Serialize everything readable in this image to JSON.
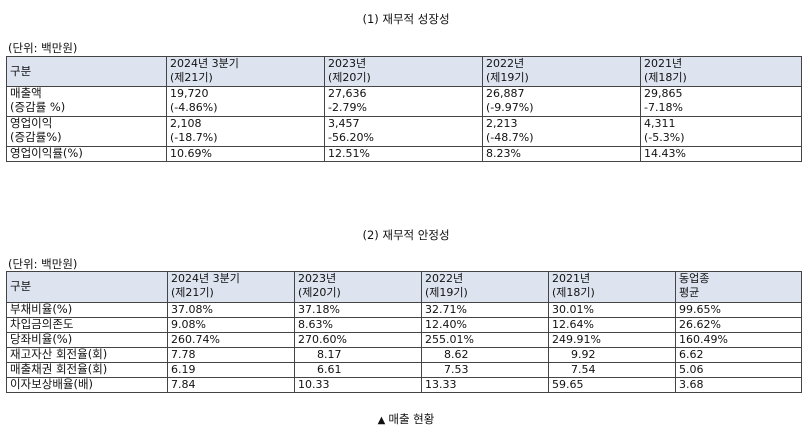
{
  "table1": {
    "title": "(1) 재무적 성장성",
    "unit": "(단위: 백만원)",
    "headers": [
      {
        "l1": "구분",
        "l2": ""
      },
      {
        "l1": "2024년 3분기",
        "l2": "(제21기)"
      },
      {
        "l1": "2023년",
        "l2": "(제20기)"
      },
      {
        "l1": "2022년",
        "l2": "(제19기)"
      },
      {
        "l1": "2021년",
        "l2": "(제18기)"
      }
    ],
    "rows": [
      {
        "l1": "매출액",
        "l2": "(증감률 %)",
        "cells": [
          {
            "l1": "19,720",
            "l2": "(-4.86%)"
          },
          {
            "l1": "27,636",
            "l2": "-2.79%"
          },
          {
            "l1": "26,887",
            "l2": "(-9.97%)"
          },
          {
            "l1": "29,865",
            "l2": "-7.18%"
          }
        ]
      },
      {
        "l1": "영업이익",
        "l2": "(증감률%)",
        "cells": [
          {
            "l1": "2,108",
            "l2": "(-18.7%)"
          },
          {
            "l1": "3,457",
            "l2": "-56.20%"
          },
          {
            "l1": "2,213",
            "l2": "(-48.7%)"
          },
          {
            "l1": "4,311",
            "l2": "(-5.3%)"
          }
        ]
      },
      {
        "l1": "영업이익률(%)",
        "l2": "",
        "cells": [
          {
            "l1": "10.69%",
            "l2": ""
          },
          {
            "l1": "12.51%",
            "l2": ""
          },
          {
            "l1": "8.23%",
            "l2": ""
          },
          {
            "l1": "14.43%",
            "l2": ""
          }
        ]
      }
    ]
  },
  "table2": {
    "title": "(2) 재무적 안정성",
    "unit": "(단위: 백만원)",
    "headers": [
      {
        "l1": "구분",
        "l2": ""
      },
      {
        "l1": "2024년 3분기",
        "l2": "(제21기)"
      },
      {
        "l1": "2023년",
        "l2": "(제20기)"
      },
      {
        "l1": "2022년",
        "l2": "(제19기)"
      },
      {
        "l1": "2021년",
        "l2": "(제18기)"
      },
      {
        "l1": "동업종",
        "l2": "평균"
      }
    ],
    "rows": [
      {
        "label": "부채비율(%)",
        "values": [
          "37.08%",
          "37.18%",
          "32.71%",
          "30.01%",
          "99.65%"
        ]
      },
      {
        "label": "차입금의존도",
        "values": [
          "9.08%",
          "8.63%",
          "12.40%",
          "12.64%",
          "26.62%"
        ]
      },
      {
        "label": "당좌비율(%)",
        "values": [
          "260.74%",
          "270.60%",
          "255.01%",
          "249.91%",
          "160.49%"
        ]
      },
      {
        "label": "재고자산 회전율(회)",
        "values": [
          "7.78",
          "8.17",
          "8.62",
          "9.92",
          "6.62"
        ]
      },
      {
        "label": "매출채권 회전율(회)",
        "values": [
          "6.19",
          "6.61",
          "7.53",
          "7.54",
          "5.06"
        ]
      },
      {
        "label": "이자보상배율(배)",
        "values": [
          "7.84",
          "10.33",
          "13.33",
          "59.65",
          "3.68"
        ]
      }
    ]
  },
  "caption": {
    "icon": "triangle-up-icon",
    "text": "매출 현황"
  }
}
